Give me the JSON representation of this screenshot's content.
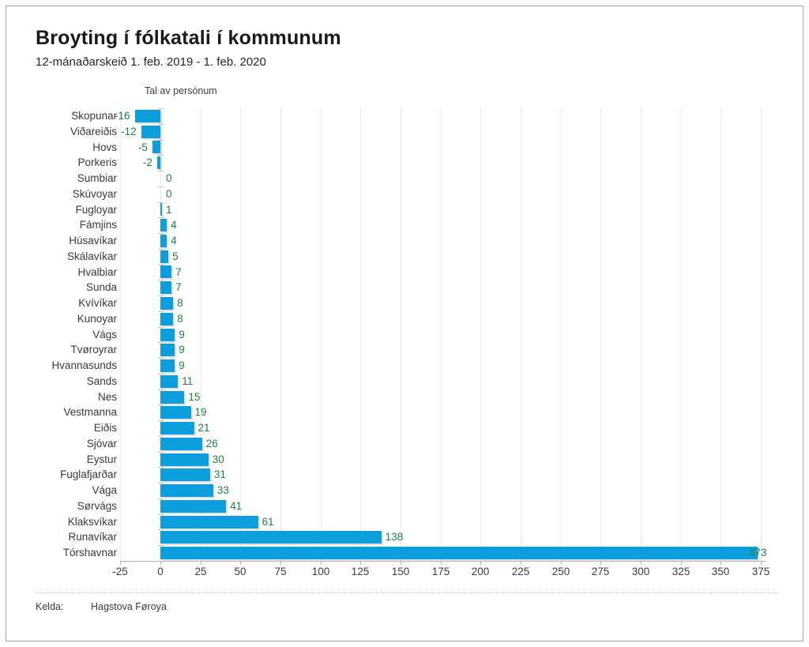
{
  "chart_data": {
    "type": "bar",
    "orientation": "horizontal",
    "title": "Broyting í fólkatali í kommunum",
    "subtitle": "12-mánaðarskeið 1. feb. 2019 - 1. feb. 2020",
    "xlabel": "Tal av persónum",
    "categories": [
      "Skopunar",
      "Viðareiðis",
      "Hovs",
      "Porkeris",
      "Sumbiar",
      "Skúvoyar",
      "Fugloyar",
      "Fámjins",
      "Húsavíkar",
      "Skálavíkar",
      "Hvalbiar",
      "Sunda",
      "Kvívíkar",
      "Kunoyar",
      "Vágs",
      "Tvøroyrar",
      "Hvannasunds",
      "Sands",
      "Nes",
      "Vestmanna",
      "Eiðis",
      "Sjóvar",
      "Eystur",
      "Fuglafjarðar",
      "Vága",
      "Sørvágs",
      "Klaksvíkar",
      "Runavíkar",
      "Tórshavnar"
    ],
    "values": [
      -16,
      -12,
      -5,
      -2,
      0,
      0,
      1,
      4,
      4,
      5,
      7,
      7,
      8,
      8,
      9,
      9,
      9,
      11,
      15,
      19,
      21,
      26,
      30,
      31,
      33,
      41,
      61,
      138,
      373
    ],
    "x_ticks": [
      -25,
      0,
      25,
      50,
      75,
      100,
      125,
      150,
      175,
      200,
      225,
      250,
      275,
      300,
      325,
      350,
      375
    ],
    "xlim": [
      -25,
      378
    ],
    "grid": true,
    "legend": "none",
    "bar_color": "#0d9edd",
    "value_label_color": "#1f8443"
  },
  "footer": {
    "source_label": "Kelda:",
    "source_value": "Hagstova Føroya"
  }
}
